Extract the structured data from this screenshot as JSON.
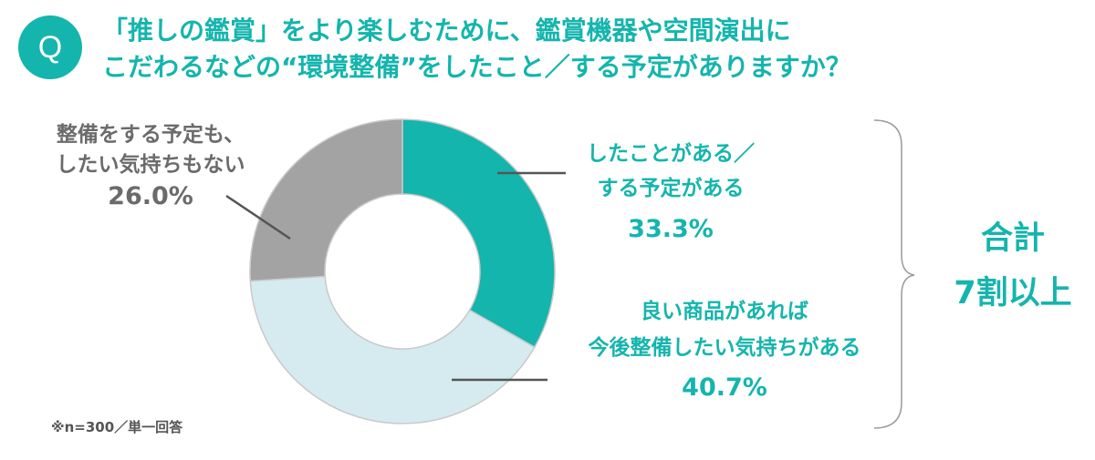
{
  "question": {
    "badge": "Q",
    "line1": "「推しの鑑賞」をより楽しむために、鑑賞機器や空間演出に",
    "line2": "こだわるなどの“環境整備”をしたこと／する予定がありますか？"
  },
  "chart_data": {
    "type": "pie",
    "style": "donut",
    "slices": [
      {
        "label_lines": [
          "したことがある／",
          "する予定がある"
        ],
        "value_text": "33.3%",
        "value": 33.3,
        "color": "#14b5ad"
      },
      {
        "label_lines": [
          "良い商品があれば",
          "今後整備したい気持ちがある"
        ],
        "value_text": "40.7%",
        "value": 40.7,
        "color": "#d6ebef"
      },
      {
        "label_lines": [
          "整備をする予定も、",
          "したい気持ちもない"
        ],
        "value_text": "26.0%",
        "value": 26.0,
        "color": "#a3a3a3"
      }
    ]
  },
  "total": {
    "line1": "合計",
    "line2": "7割以上"
  },
  "note": "※n=300／単一回答"
}
